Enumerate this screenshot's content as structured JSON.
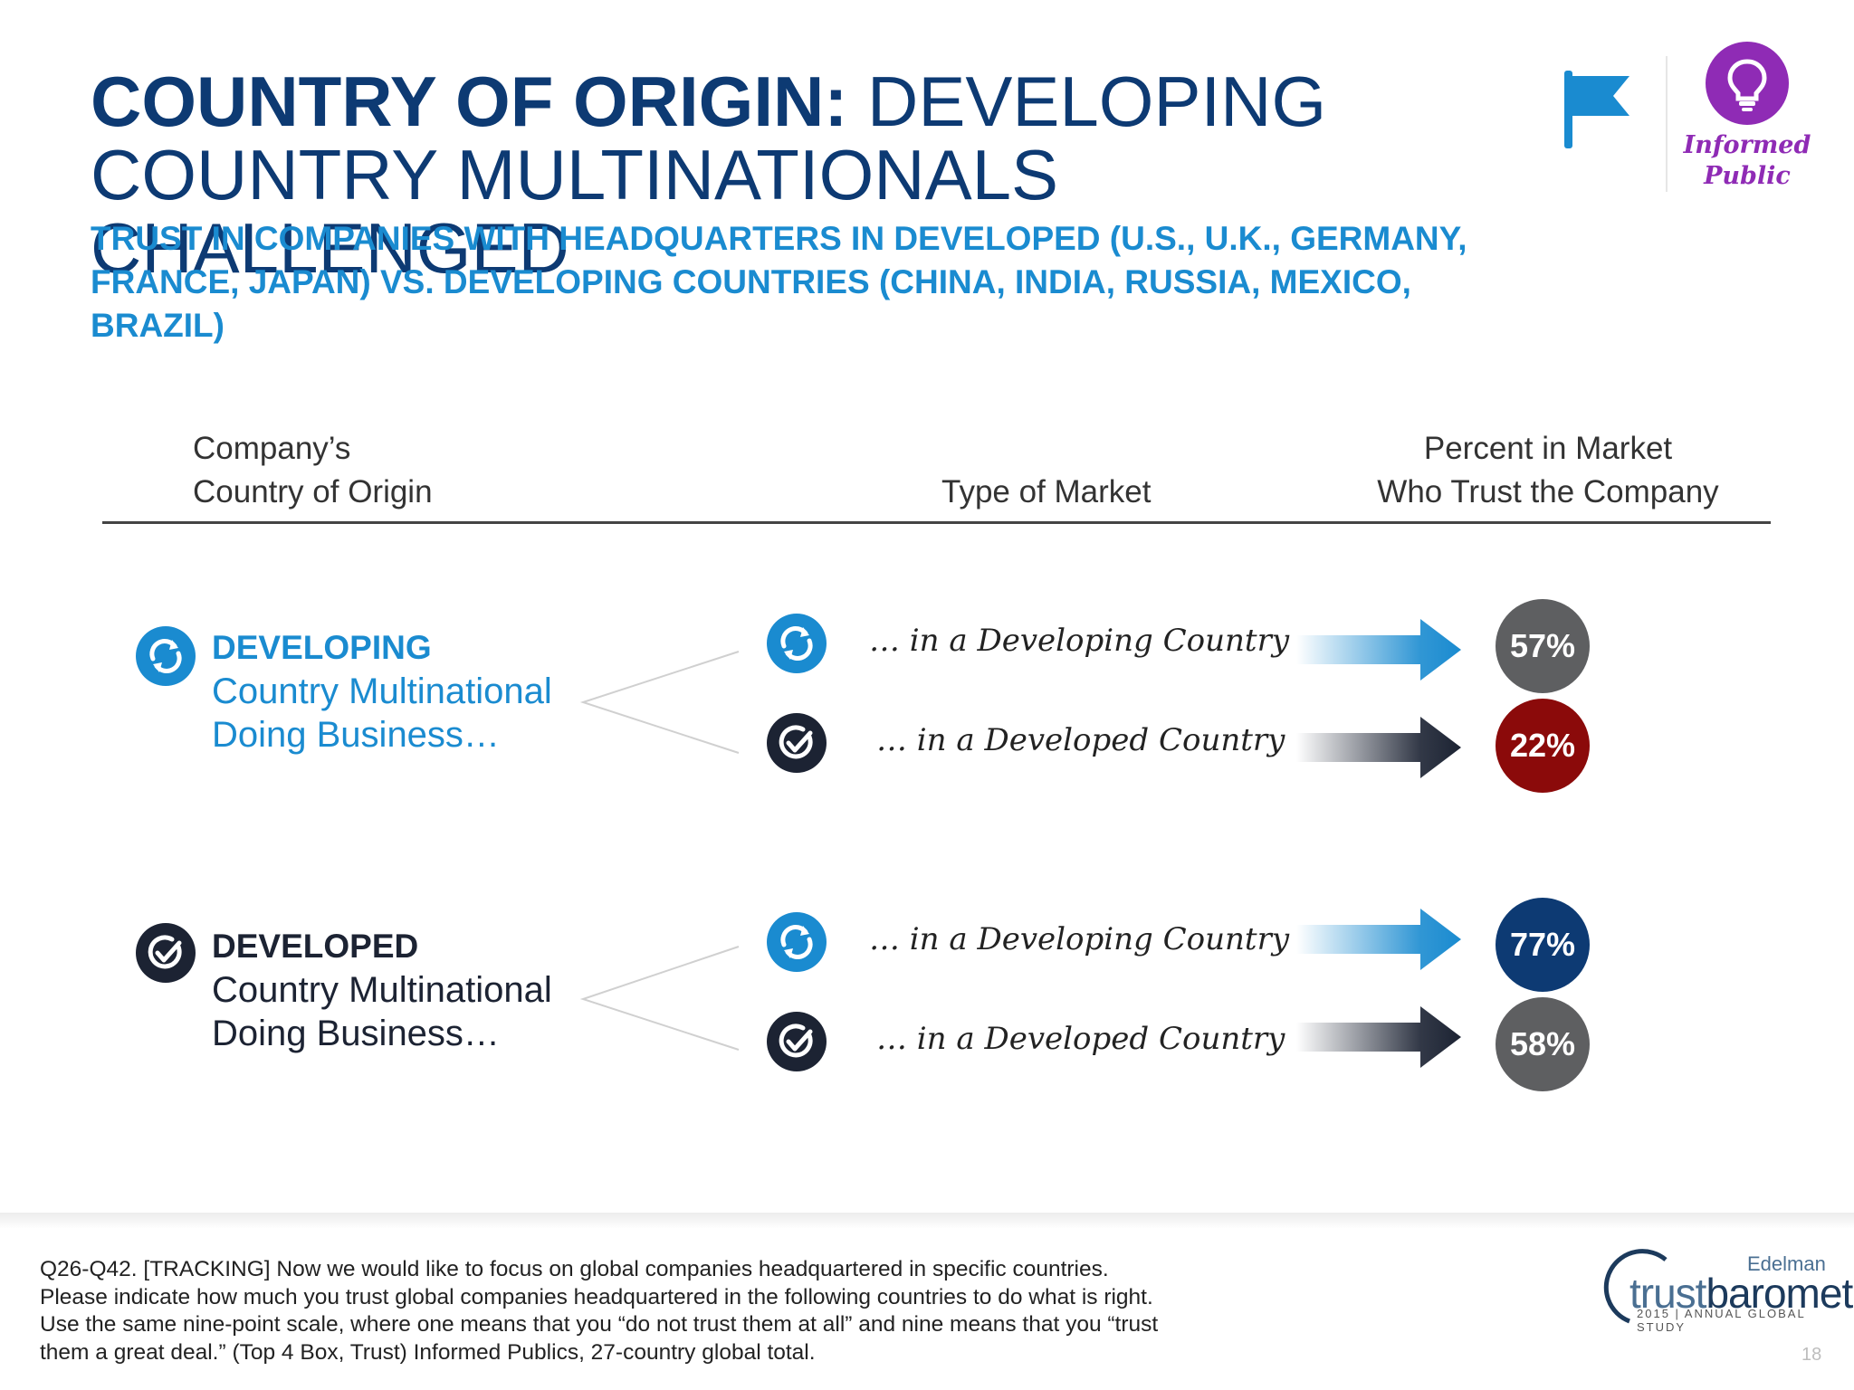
{
  "title": {
    "bold": "COUNTRY OF ORIGIN:",
    "line1_rest": "DEVELOPING",
    "line2": "COUNTRY MULTINATIONALS CHALLENGED"
  },
  "subtitle": {
    "line1": "TRUST IN COMPANIES WITH HEADQUARTERS IN DEVELOPED (U.S., U.K., GERMANY,",
    "line2": "FRANCE, JAPAN) VS. DEVELOPING COUNTRIES (CHINA, INDIA, RUSSIA, MEXICO, BRAZIL)"
  },
  "badge": {
    "line1": "Informed",
    "line2": "Public",
    "color": "#8f2bb5",
    "icon": "lightbulb-icon"
  },
  "flag": {
    "icon": "flag-icon",
    "color": "#1a8bd0"
  },
  "headers": {
    "origin_line1": "Company’s",
    "origin_line2": "Country of Origin",
    "market": "Type of Market",
    "percent_line1": "Percent in Market",
    "percent_line2": "Who Trust the Company"
  },
  "groups": [
    {
      "keyword": "DEVELOPING",
      "line2": "Country Multinational",
      "line3": "Doing Business…",
      "icon": "refresh-icon",
      "rows": [
        {
          "market": "… in a Developing Country",
          "icon": "refresh-icon",
          "value": "57%",
          "color": "#5e5f61"
        },
        {
          "market": "… in a Developed Country",
          "icon": "check-icon",
          "value": "22%",
          "color": "#8b0a0a"
        }
      ]
    },
    {
      "keyword": "DEVELOPED",
      "line2": "Country Multinational",
      "line3": "Doing Business…",
      "icon": "check-icon",
      "rows": [
        {
          "market": "… in a Developing Country",
          "icon": "refresh-icon",
          "value": "77%",
          "color": "#0d3a73"
        },
        {
          "market": "… in a Developed Country",
          "icon": "check-icon",
          "value": "58%",
          "color": "#5e5f61"
        }
      ]
    }
  ],
  "colors": {
    "developing_blue": "#1a8bd0",
    "developed_navy": "#1c2333",
    "title_navy": "#0d3a73"
  },
  "footnote": {
    "line1": "Q26-Q42. [TRACKING] Now we would like to focus on global companies headquartered in specific countries.",
    "line2": "Please indicate how much you trust global companies headquartered in the following countries to do what is right.",
    "line3": "Use the same nine-point scale, where one means that you “do not trust them at all” and nine means that you “trust",
    "line4": "them a great deal.” (Top 4 Box, Trust) Informed Publics, 27-country global total."
  },
  "logo": {
    "company": "Edelman",
    "word_light": "trust",
    "word_bold": "barometer",
    "study": "2015 | ANNUAL GLOBAL STUDY"
  },
  "page_number": "18"
}
